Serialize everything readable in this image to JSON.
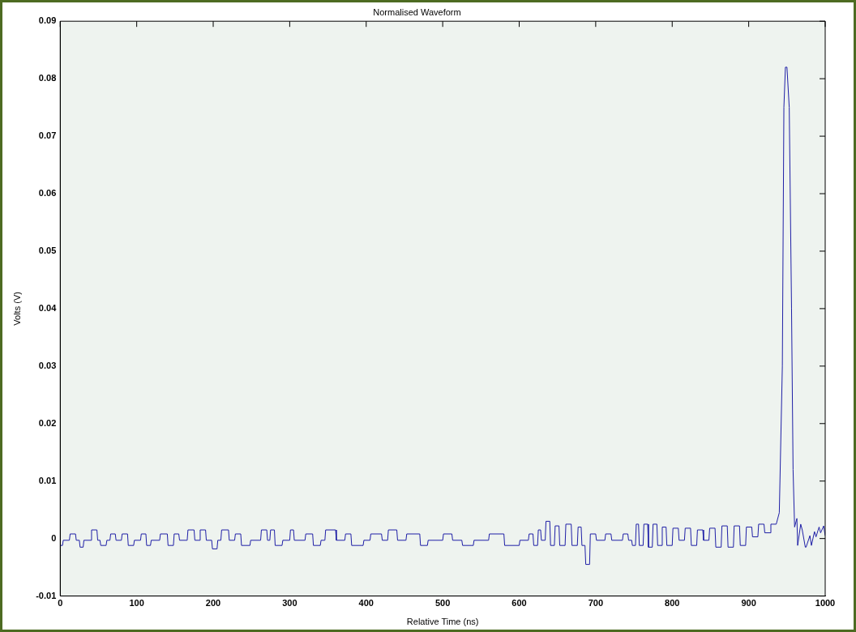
{
  "chart_data": {
    "type": "line",
    "title": "Normalised Waveform",
    "xlabel": "Relative Time (ns)",
    "ylabel": "Volts (V)",
    "x": [
      0,
      3,
      4,
      12,
      13,
      20,
      21,
      25,
      26,
      30,
      31,
      40,
      41,
      48,
      49,
      52,
      53,
      60,
      61,
      65,
      66,
      72,
      73,
      80,
      81,
      88,
      89,
      96,
      97,
      105,
      106,
      112,
      113,
      118,
      119,
      130,
      131,
      140,
      141,
      148,
      149,
      155,
      156,
      166,
      167,
      175,
      176,
      182,
      183,
      190,
      191,
      198,
      199,
      205,
      206,
      210,
      211,
      220,
      221,
      228,
      229,
      236,
      237,
      248,
      249,
      262,
      263,
      270,
      271,
      274,
      275,
      280,
      281,
      290,
      291,
      300,
      301,
      305,
      306,
      320,
      321,
      330,
      331,
      340,
      341,
      346,
      347,
      360,
      361,
      372,
      373,
      380,
      381,
      396,
      397,
      405,
      406,
      420,
      421,
      428,
      429,
      440,
      441,
      452,
      453,
      470,
      471,
      480,
      481,
      500,
      501,
      512,
      513,
      525,
      526,
      540,
      541,
      560,
      561,
      580,
      581,
      600,
      601,
      612,
      613,
      618,
      619,
      624,
      625,
      628,
      629,
      634,
      635,
      640,
      641,
      646,
      647,
      652,
      653,
      660,
      661,
      668,
      669,
      676,
      677,
      681,
      682,
      686,
      687,
      692,
      693,
      700,
      701,
      712,
      713,
      720,
      721,
      735,
      736,
      742,
      743,
      747,
      748,
      752,
      753,
      756,
      757,
      762,
      763,
      768,
      769,
      774,
      775,
      780,
      781,
      786,
      787,
      792,
      793,
      800,
      801,
      808,
      809,
      816,
      817,
      824,
      825,
      832,
      833,
      840,
      841,
      848,
      849,
      856,
      857,
      864,
      865,
      872,
      873,
      880,
      881,
      888,
      889,
      896,
      897,
      904,
      905,
      912,
      913,
      920,
      921,
      928,
      929,
      932,
      936,
      940,
      944,
      946,
      948,
      950,
      953,
      956,
      958,
      960,
      963,
      964,
      968,
      970,
      974,
      975,
      980,
      982,
      986,
      988,
      992,
      994,
      998,
      1000
    ],
    "values": [
      -0.0012,
      -0.0012,
      -0.0003,
      -0.0003,
      0.0008,
      0.0008,
      -0.0003,
      -0.0003,
      -0.0015,
      -0.0015,
      -0.0003,
      -0.0003,
      0.0015,
      0.0015,
      -0.0003,
      -0.0003,
      -0.0012,
      -0.0012,
      -0.0003,
      -0.0003,
      0.0008,
      0.0008,
      -0.0003,
      -0.0003,
      0.0008,
      0.0008,
      -0.0012,
      -0.0012,
      -0.0003,
      -0.0003,
      0.0008,
      0.0008,
      -0.0012,
      -0.0012,
      -0.0003,
      -0.0003,
      0.0008,
      0.0008,
      -0.0012,
      -0.0012,
      0.0008,
      0.0008,
      -0.0003,
      -0.0003,
      0.0015,
      0.0015,
      -0.0003,
      -0.0003,
      0.0015,
      0.0015,
      -0.0003,
      -0.0003,
      -0.0018,
      -0.0018,
      -0.0003,
      -0.0003,
      0.0015,
      0.0015,
      -0.0003,
      -0.0003,
      0.0008,
      0.0008,
      -0.0012,
      -0.0012,
      -0.0003,
      -0.0003,
      0.0015,
      0.0015,
      -0.0003,
      -0.0003,
      0.0015,
      0.0015,
      -0.0012,
      -0.0012,
      -0.0003,
      -0.0003,
      0.0015,
      0.0015,
      -0.0003,
      -0.0003,
      0.0008,
      0.0008,
      -0.0012,
      -0.0012,
      -0.0003,
      -0.0003,
      0.0015,
      0.0015,
      -0.0003,
      -0.0003,
      0.0008,
      0.0008,
      -0.0012,
      -0.0012,
      -0.0003,
      -0.0003,
      0.0008,
      0.0008,
      -0.0003,
      -0.0003,
      0.0015,
      0.0015,
      -0.0003,
      -0.0003,
      0.0008,
      0.0008,
      -0.0012,
      -0.0012,
      -0.0003,
      -0.0003,
      0.0008,
      0.0008,
      -0.0003,
      -0.0003,
      -0.0012,
      -0.0012,
      -0.0003,
      -0.0003,
      0.0008,
      0.0008,
      -0.0012,
      -0.0012,
      -0.0003,
      -0.0003,
      0.0008,
      0.0008,
      -0.0012,
      -0.0012,
      0.0015,
      0.0015,
      -0.0003,
      -0.0003,
      0.003,
      0.003,
      -0.0012,
      -0.0012,
      0.0022,
      0.0022,
      -0.0012,
      -0.0012,
      0.0025,
      0.0025,
      -0.0012,
      -0.0012,
      0.002,
      0.002,
      -0.0012,
      -0.0012,
      -0.0045,
      -0.0045,
      0.0008,
      0.0008,
      -0.0003,
      -0.0003,
      0.0008,
      0.0008,
      -0.0003,
      -0.0003,
      0.0008,
      0.0008,
      -0.0003,
      -0.0003,
      -0.0012,
      -0.0012,
      0.0025,
      0.0025,
      -0.0012,
      -0.0012,
      0.0025,
      0.0025,
      -0.0015,
      -0.0015,
      0.0025,
      0.0025,
      -0.0012,
      -0.0012,
      0.002,
      0.002,
      -0.0012,
      -0.0012,
      0.0018,
      0.0018,
      -0.0003,
      -0.0003,
      0.0018,
      0.0018,
      -0.0012,
      -0.0012,
      0.0015,
      0.0015,
      -0.0003,
      -0.0003,
      0.0018,
      0.0018,
      -0.0015,
      -0.0015,
      0.0022,
      0.0022,
      -0.0015,
      -0.0015,
      0.0022,
      0.0022,
      -0.0012,
      -0.0012,
      0.002,
      0.002,
      0.0003,
      0.0003,
      0.0025,
      0.0025,
      0.001,
      0.001,
      0.0025,
      0.0025,
      0.0025,
      0.0045,
      0.03,
      0.075,
      0.082,
      0.082,
      0.075,
      0.04,
      0.012,
      0.002,
      0.0035,
      -0.0012,
      0.0025,
      0.0015,
      -0.0015,
      -0.0015,
      0.0005,
      -0.0012,
      0.0012,
      0.0003,
      0.002,
      0.001,
      0.0022,
      0.0005
    ],
    "color": "#1f1fa6",
    "xlim": [
      0,
      1000
    ],
    "ylim": [
      -0.01,
      0.09
    ],
    "xticks": [
      0,
      100,
      200,
      300,
      400,
      500,
      600,
      700,
      800,
      900,
      1000
    ],
    "yticks": [
      -0.01,
      0,
      0.01,
      0.02,
      0.03,
      0.04,
      0.05,
      0.06,
      0.07,
      0.08,
      0.09
    ],
    "grid": false,
    "legend": false,
    "marker": "none",
    "line_style": "solid"
  }
}
